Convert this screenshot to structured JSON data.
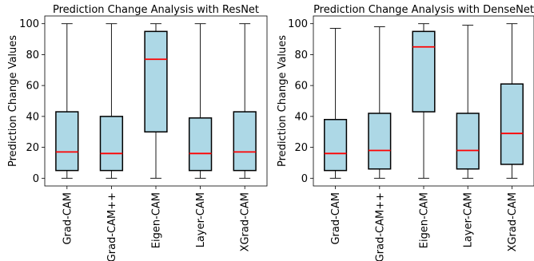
{
  "chart_data": [
    {
      "type": "box",
      "title": "Prediction Change Analysis with ResNet",
      "xlabel": "",
      "ylabel": "Prediction Change Values",
      "ylim": [
        -5,
        105
      ],
      "yticks": [
        0,
        20,
        40,
        60,
        80,
        100
      ],
      "grid": false,
      "categories": [
        "Grad-CAM",
        "Grad-CAM++",
        "Eigen-CAM",
        "Layer-CAM",
        "XGrad-CAM"
      ],
      "boxes": [
        {
          "whisker_low": 0,
          "q1": 5,
          "median": 17,
          "q3": 43,
          "whisker_high": 100
        },
        {
          "whisker_low": 0,
          "q1": 5,
          "median": 16,
          "q3": 40,
          "whisker_high": 100
        },
        {
          "whisker_low": 0,
          "q1": 30,
          "median": 77,
          "q3": 95,
          "whisker_high": 100
        },
        {
          "whisker_low": 0,
          "q1": 5,
          "median": 16,
          "q3": 39,
          "whisker_high": 100
        },
        {
          "whisker_low": 0,
          "q1": 5,
          "median": 17,
          "q3": 43,
          "whisker_high": 100
        }
      ]
    },
    {
      "type": "box",
      "title": "Prediction Change Analysis with DenseNet",
      "xlabel": "",
      "ylabel": "Prediction Change Values",
      "ylim": [
        -5,
        105
      ],
      "yticks": [
        0,
        20,
        40,
        60,
        80,
        100
      ],
      "grid": false,
      "categories": [
        "Grad-CAM",
        "Grad-CAM++",
        "Eigen-CAM",
        "Layer-CAM",
        "XGrad-CAM"
      ],
      "boxes": [
        {
          "whisker_low": 0,
          "q1": 5,
          "median": 16,
          "q3": 38,
          "whisker_high": 97
        },
        {
          "whisker_low": 0,
          "q1": 6,
          "median": 18,
          "q3": 42,
          "whisker_high": 98
        },
        {
          "whisker_low": 0,
          "q1": 43,
          "median": 85,
          "q3": 95,
          "whisker_high": 100
        },
        {
          "whisker_low": 0,
          "q1": 6,
          "median": 18,
          "q3": 42,
          "whisker_high": 99
        },
        {
          "whisker_low": 0,
          "q1": 9,
          "median": 29,
          "q3": 61,
          "whisker_high": 100
        }
      ]
    }
  ],
  "colors": {
    "box_fill": "#add8e6",
    "box_edge": "#000000",
    "median": "#ff0000",
    "whisker": "#000000",
    "axes": "#000000"
  }
}
